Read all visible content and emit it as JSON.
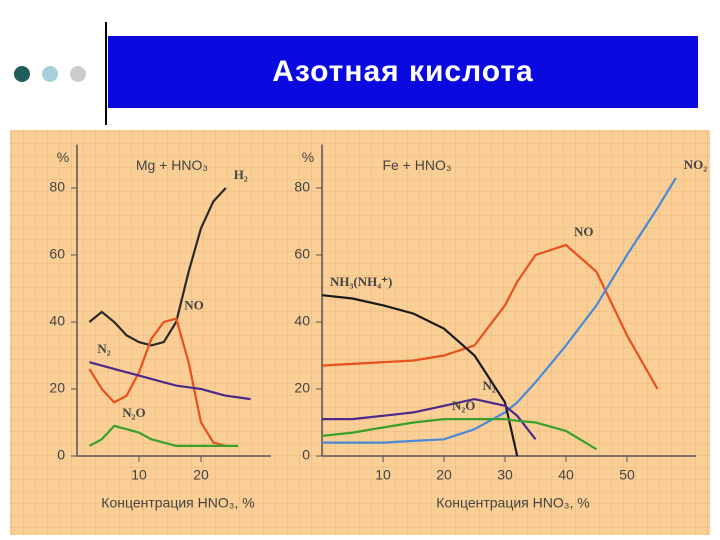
{
  "slide_title": "Азотная кислота",
  "chart_data": [
    {
      "type": "line",
      "title": "Mg + HNO₃",
      "ylabel": "%",
      "xlabel": "Концентрация HNO₃, %",
      "x": [
        2,
        4,
        6,
        8,
        10,
        12,
        14,
        16,
        18,
        20,
        22,
        24,
        26,
        28
      ],
      "series": [
        {
          "name": "H₂",
          "color": "#2a2a2a",
          "values": [
            40,
            43,
            40,
            36,
            34,
            33,
            34,
            40,
            55,
            68,
            76,
            80,
            null,
            null
          ]
        },
        {
          "name": "NO",
          "color": "#e8501e",
          "values": [
            26,
            20,
            16,
            18,
            25,
            35,
            40,
            41,
            28,
            10,
            4,
            3,
            null,
            null
          ]
        },
        {
          "name": "N₂",
          "color": "#4b2a8c",
          "values": [
            28,
            27,
            26,
            25,
            24,
            23,
            22,
            21,
            20.5,
            20,
            19,
            18,
            17.5,
            17
          ]
        },
        {
          "name": "N₂O",
          "color": "#3aa02a",
          "values": [
            3,
            5,
            9,
            8,
            7,
            5,
            4,
            3,
            3,
            3,
            3,
            3,
            3,
            null
          ]
        }
      ],
      "xlim": [
        0,
        30
      ],
      "xticks": [
        10,
        20
      ],
      "ylim": [
        0,
        90
      ],
      "yticks": [
        0,
        20,
        40,
        60,
        80
      ]
    },
    {
      "type": "line",
      "title": "Fe + HNO₃",
      "ylabel": "%",
      "xlabel": "Концентрация HNO₃, %",
      "x": [
        0,
        5,
        10,
        15,
        20,
        25,
        30,
        32,
        35,
        40,
        45,
        50,
        55,
        58
      ],
      "series": [
        {
          "name": "NO",
          "color": "#e8501e",
          "values": [
            27,
            27.5,
            28,
            28.5,
            30,
            33,
            45,
            52,
            60,
            63,
            55,
            36,
            20,
            null
          ]
        },
        {
          "name": "NO₂",
          "color": "#4a8ad8",
          "values": [
            4,
            4,
            4,
            4.5,
            5,
            8,
            13,
            16,
            22,
            33,
            45,
            60,
            74,
            83
          ]
        },
        {
          "name": "NH₃(NH₄⁺)",
          "color": "#1a1a1a",
          "values": [
            48,
            47,
            45,
            42.5,
            38,
            30,
            16,
            0,
            null,
            null,
            null,
            null,
            null,
            null
          ]
        },
        {
          "name": "N₂",
          "color": "#4b2a8c",
          "values": [
            11,
            11,
            12,
            13,
            15,
            17,
            15,
            12,
            5,
            null,
            null,
            null,
            null,
            null
          ]
        },
        {
          "name": "N₂O",
          "color": "#3aa02a",
          "values": [
            6,
            7,
            8.5,
            10,
            11,
            11,
            11,
            10.5,
            10,
            7.5,
            2,
            null,
            null,
            null
          ]
        }
      ],
      "xlim": [
        0,
        60
      ],
      "xticks": [
        10,
        20,
        30,
        40,
        50
      ],
      "ylim": [
        0,
        90
      ],
      "yticks": [
        0,
        20,
        40,
        60,
        80
      ]
    }
  ]
}
